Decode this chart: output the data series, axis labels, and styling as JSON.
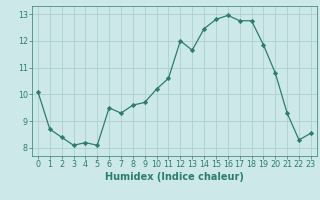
{
  "x": [
    0,
    1,
    2,
    3,
    4,
    5,
    6,
    7,
    8,
    9,
    10,
    11,
    12,
    13,
    14,
    15,
    16,
    17,
    18,
    19,
    20,
    21,
    22,
    23
  ],
  "y": [
    10.1,
    8.7,
    8.4,
    8.1,
    8.2,
    8.1,
    9.5,
    9.3,
    9.6,
    9.7,
    10.2,
    10.6,
    12.0,
    11.65,
    12.45,
    12.8,
    12.95,
    12.75,
    12.75,
    11.85,
    10.8,
    9.3,
    8.3,
    8.55
  ],
  "line_color": "#2d7d6e",
  "marker": "D",
  "marker_size": 2.2,
  "bg_color": "#cce8e8",
  "grid_color": "#aed0d0",
  "xlabel": "Humidex (Indice chaleur)",
  "xlim": [
    -0.5,
    23.5
  ],
  "ylim": [
    7.7,
    13.3
  ],
  "yticks": [
    8,
    9,
    10,
    11,
    12,
    13
  ],
  "xticks": [
    0,
    1,
    2,
    3,
    4,
    5,
    6,
    7,
    8,
    9,
    10,
    11,
    12,
    13,
    14,
    15,
    16,
    17,
    18,
    19,
    20,
    21,
    22,
    23
  ],
  "tick_color": "#2d7d6e",
  "label_fontsize": 7.0,
  "tick_fontsize": 5.8,
  "linewidth": 0.9
}
